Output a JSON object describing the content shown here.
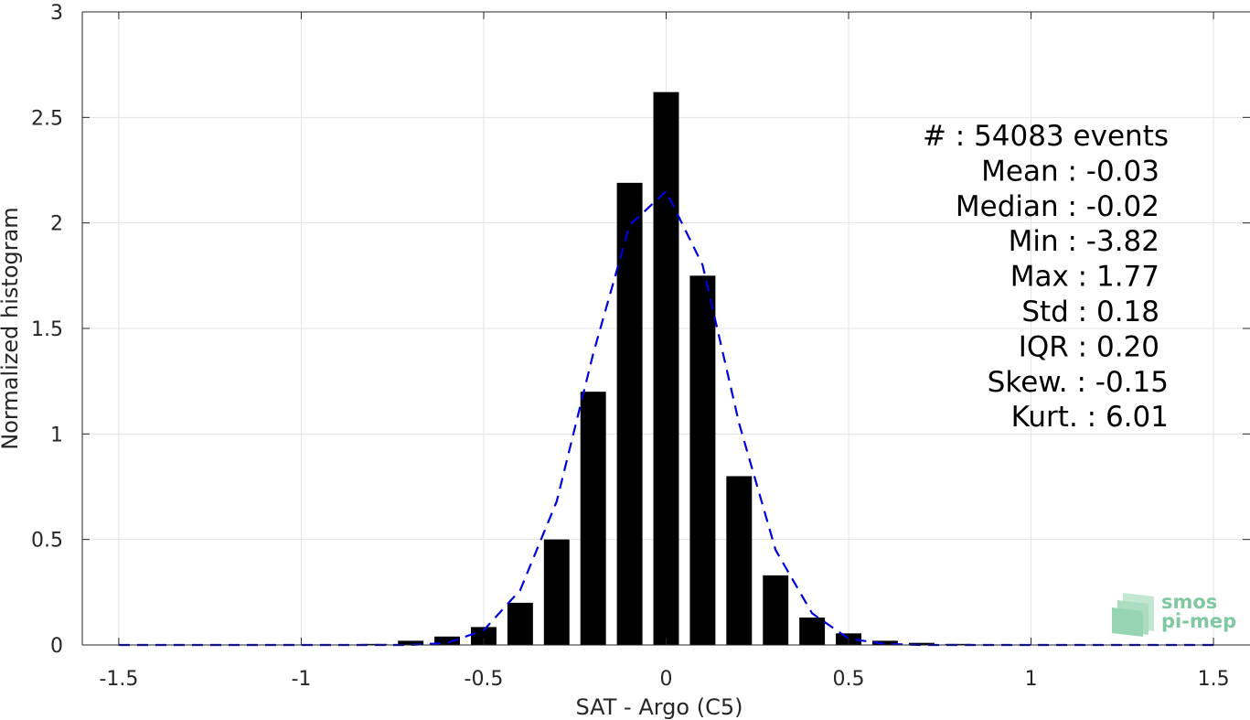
{
  "chart_data": {
    "type": "bar",
    "xlabel": "SAT - Argo (C5)",
    "ylabel": "Normalized histogram",
    "xlim": [
      -1.6,
      1.6
    ],
    "ylim": [
      0,
      3
    ],
    "xticks": [
      -1.5,
      -1,
      -0.5,
      0,
      0.5,
      1,
      1.5
    ],
    "xtick_labels": [
      "-1.5",
      "-1",
      "-0.5",
      "0",
      "0.5",
      "1",
      "1.5"
    ],
    "yticks": [
      0,
      0.5,
      1,
      1.5,
      2,
      2.5,
      3
    ],
    "ytick_labels": [
      "0",
      "0.5",
      "1",
      "1.5",
      "2",
      "2.5",
      "3"
    ],
    "grid": true,
    "bar_color": "#000000",
    "bar_width": 0.07,
    "bars": {
      "x": [
        -1.5,
        -1.4,
        -1.3,
        -1.2,
        -1.1,
        -1.0,
        -0.9,
        -0.8,
        -0.7,
        -0.6,
        -0.5,
        -0.4,
        -0.3,
        -0.2,
        -0.1,
        0.0,
        0.1,
        0.2,
        0.3,
        0.4,
        0.5,
        0.6,
        0.7,
        0.8,
        0.9,
        1.0,
        1.1,
        1.2,
        1.3,
        1.4,
        1.5
      ],
      "y": [
        0.0,
        0.0,
        0.0,
        0.0,
        0.0,
        0.0,
        0.0,
        0.005,
        0.02,
        0.04,
        0.085,
        0.2,
        0.5,
        1.2,
        2.19,
        2.62,
        1.75,
        0.8,
        0.33,
        0.13,
        0.055,
        0.02,
        0.01,
        0.005,
        0.002,
        0.0,
        0.0,
        0.0,
        0.0,
        0.0,
        0.0
      ]
    },
    "fit": {
      "color": "#0000dd",
      "style": "dashed",
      "x": [
        -1.5,
        -1.4,
        -1.3,
        -1.2,
        -1.1,
        -1.0,
        -0.9,
        -0.8,
        -0.7,
        -0.6,
        -0.5,
        -0.4,
        -0.3,
        -0.2,
        -0.1,
        0.0,
        0.1,
        0.2,
        0.3,
        0.4,
        0.5,
        0.6,
        0.7,
        0.8,
        0.9,
        1.0,
        1.1,
        1.2,
        1.3,
        1.4,
        1.5
      ],
      "y": [
        0.0,
        0.0,
        0.0,
        0.0,
        0.0,
        0.0,
        0.0,
        0.0,
        0.0,
        0.01,
        0.07,
        0.26,
        0.68,
        1.38,
        1.99,
        2.15,
        1.8,
        1.05,
        0.45,
        0.15,
        0.03,
        0.005,
        0.0,
        0.0,
        0.0,
        0.0,
        0.0,
        0.0,
        0.0,
        0.0,
        0.0
      ]
    },
    "stats": [
      "#  : 54083 events",
      "Mean : -0.03",
      "Median : -0.02",
      "Min : -3.82",
      "Max : 1.77",
      "Std : 0.18",
      "IQR : 0.20",
      "Skew. : -0.15",
      "Kurt. : 6.01"
    ]
  },
  "logo": {
    "line1": "smos",
    "line2": "pi-mep",
    "color": "#7fc8a0"
  }
}
